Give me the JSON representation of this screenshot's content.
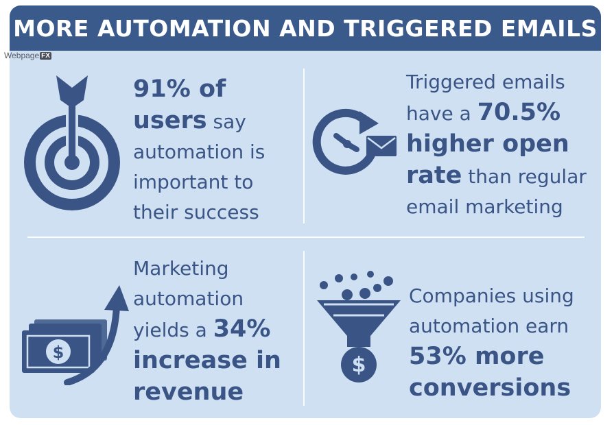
{
  "header": {
    "title": "MORE AUTOMATION AND TRIGGERED EMAILS"
  },
  "brand": {
    "name": "Webpage",
    "suffix": "FX"
  },
  "stats": [
    {
      "icon": "target-arrow-icon",
      "lines": [
        [
          "91% of",
          ""
        ],
        [
          "users",
          " say"
        ],
        [
          "",
          "automation is"
        ],
        [
          "",
          "important to"
        ],
        [
          "",
          "their success"
        ]
      ]
    },
    {
      "icon": "clock-email-icon",
      "lines": [
        [
          "",
          "Triggered emails"
        ],
        [
          "",
          "have a ",
          "70.5%"
        ],
        [
          "higher open",
          ""
        ],
        [
          "rate",
          " than regular"
        ],
        [
          "",
          "email marketing"
        ]
      ]
    },
    {
      "icon": "money-growth-icon",
      "lines": [
        [
          "",
          "Marketing"
        ],
        [
          "",
          "automation"
        ],
        [
          "",
          "yields a ",
          "34%"
        ],
        [
          "increase in",
          ""
        ],
        [
          "revenue",
          ""
        ]
      ]
    },
    {
      "icon": "funnel-dollar-icon",
      "lines": [
        [
          "",
          "Companies using"
        ],
        [
          "",
          "automation earn"
        ],
        [
          "53% more",
          ""
        ],
        [
          "conversions",
          ""
        ]
      ]
    }
  ],
  "colors": {
    "header": "#3a5a8c",
    "background": "#cfe0f3",
    "icon": "#3a5585",
    "text": "#3a5585"
  }
}
